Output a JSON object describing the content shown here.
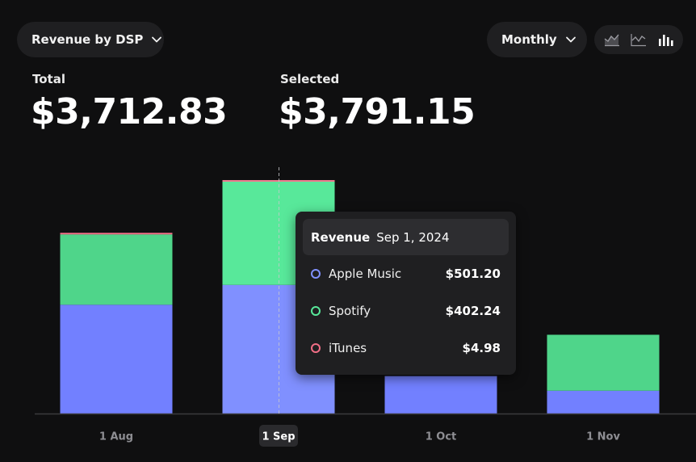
{
  "header": {
    "metric_label": "Revenue by DSP",
    "period_label": "Monthly",
    "chart_type_icons": [
      "area-chart-icon",
      "line-chart-icon",
      "bar-chart-icon"
    ]
  },
  "stats": {
    "total_label": "Total",
    "total_value": "$3,712.83",
    "selected_label": "Selected",
    "selected_value": "$3,791.15"
  },
  "tooltip": {
    "title": "Revenue",
    "date": "Sep 1, 2024",
    "rows": [
      {
        "name": "Apple Music",
        "value": "$501.20",
        "color": "#8090ff"
      },
      {
        "name": "Spotify",
        "value": "$402.24",
        "color": "#58e89a"
      },
      {
        "name": "iTunes",
        "value": "$4.98",
        "color": "#f06e86"
      }
    ]
  },
  "chart_data": {
    "type": "bar",
    "stacked": true,
    "categories": [
      "1 Aug",
      "1 Sep",
      "1 Oct",
      "1 Nov"
    ],
    "selected_index": 1,
    "series": [
      {
        "name": "Apple Music",
        "color": "#7280ff",
        "values": [
          424,
          501.2,
          146,
          89
        ]
      },
      {
        "name": "Spotify",
        "color": "#4fd58a",
        "values": [
          274,
          402.24,
          0,
          218
        ]
      },
      {
        "name": "iTunes",
        "color": "#f06e86",
        "values": [
          3,
          4.98,
          0,
          0
        ]
      }
    ],
    "ylim": [
      0,
      960
    ],
    "grid": false,
    "legend": "tooltip"
  }
}
